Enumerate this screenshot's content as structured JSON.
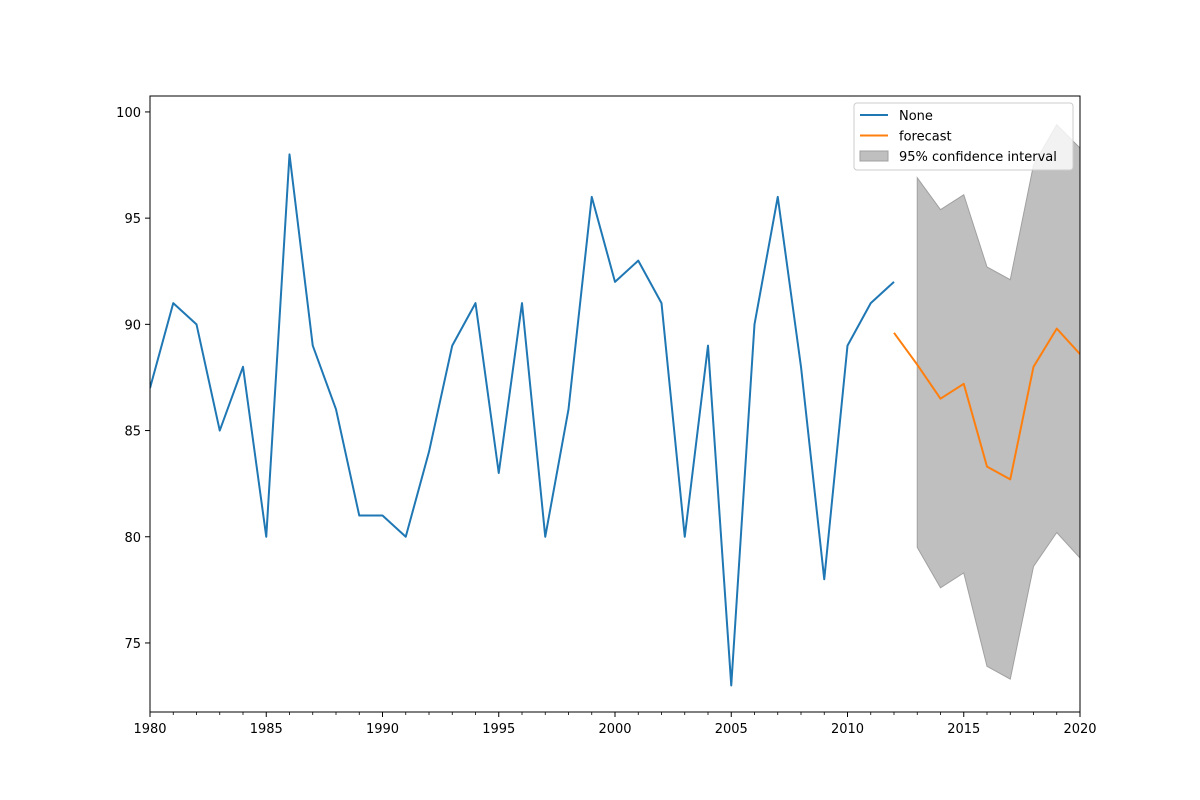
{
  "chart_data": {
    "type": "line",
    "title": "",
    "xlabel": "",
    "ylabel": "",
    "xlim": [
      1980,
      2020
    ],
    "ylim": [
      71.75,
      100.75
    ],
    "x_ticks": [
      1980,
      1985,
      1990,
      1995,
      2000,
      2005,
      2010,
      2015,
      2020
    ],
    "x_minor_ticks": [
      1981,
      1982,
      1983,
      1984,
      1986,
      1987,
      1988,
      1989,
      1991,
      1992,
      1993,
      1994,
      1996,
      1997,
      1998,
      1999,
      2001,
      2002,
      2003,
      2004,
      2006,
      2007,
      2008,
      2009,
      2011,
      2012,
      2013,
      2014,
      2016,
      2017,
      2018,
      2019
    ],
    "y_ticks": [
      75,
      80,
      85,
      90,
      95,
      100
    ],
    "grid": false,
    "legend_position": "top-right",
    "series": [
      {
        "name": "None",
        "color": "#1f77b4",
        "x": [
          1980,
          1981,
          1982,
          1983,
          1984,
          1985,
          1986,
          1987,
          1988,
          1989,
          1990,
          1991,
          1992,
          1993,
          1994,
          1995,
          1996,
          1997,
          1998,
          1999,
          2000,
          2001,
          2002,
          2003,
          2004,
          2005,
          2006,
          2007,
          2008,
          2009,
          2010,
          2011,
          2012
        ],
        "y": [
          87,
          91,
          90,
          85,
          88,
          80,
          98,
          89,
          86,
          81,
          81,
          80,
          84,
          89,
          91,
          83,
          91,
          80,
          86,
          96,
          92,
          93,
          91,
          80,
          89,
          73,
          90,
          96,
          88,
          78,
          89,
          91,
          92
        ]
      },
      {
        "name": "forecast",
        "color": "#ff7f0e",
        "x": [
          2012,
          2013,
          2014,
          2015,
          2016,
          2017,
          2018,
          2019,
          2020
        ],
        "y": [
          89.6,
          88.1,
          86.5,
          87.2,
          83.3,
          82.7,
          88.0,
          89.8,
          88.6
        ]
      }
    ],
    "confidence_interval": {
      "name": "95% confidence interval",
      "color": "#bfbfbf",
      "edge_color": "#a0a0a0",
      "x": [
        2013,
        2014,
        2015,
        2016,
        2017,
        2018,
        2019,
        2020
      ],
      "lower": [
        79.5,
        77.6,
        78.3,
        73.9,
        73.3,
        78.6,
        80.2,
        79.0
      ],
      "upper": [
        96.9,
        95.4,
        96.1,
        92.7,
        92.1,
        97.5,
        99.4,
        98.3
      ]
    }
  }
}
